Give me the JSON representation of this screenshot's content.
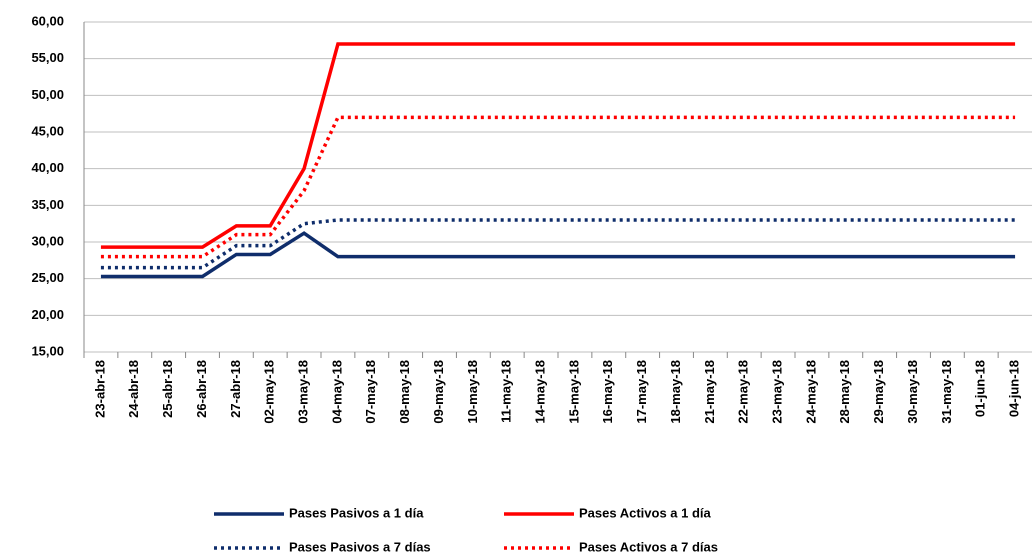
{
  "chart_data": {
    "type": "line",
    "categories": [
      "23-abr-18",
      "24-abr-18",
      "25-abr-18",
      "26-abr-18",
      "27-abr-18",
      "02-may-18",
      "03-may-18",
      "04-may-18",
      "07-may-18",
      "08-may-18",
      "09-may-18",
      "10-may-18",
      "11-may-18",
      "14-may-18",
      "15-may-18",
      "16-may-18",
      "17-may-18",
      "18-may-18",
      "21-may-18",
      "22-may-18",
      "23-may-18",
      "24-may-18",
      "28-may-18",
      "29-may-18",
      "30-may-18",
      "31-may-18",
      "01-jun-18",
      "04-jun-18"
    ],
    "series": [
      {
        "name": "Pases Pasivos a 1 día",
        "color": "#0f2d6b",
        "line_style": "solid",
        "values": [
          25.3,
          25.3,
          25.3,
          25.3,
          28.3,
          28.3,
          31.2,
          28,
          28,
          28,
          28,
          28,
          28,
          28,
          28,
          28,
          28,
          28,
          28,
          28,
          28,
          28,
          28,
          28,
          28,
          28,
          28,
          28
        ]
      },
      {
        "name": "Pases Activos a 1 día",
        "color": "#ff0000",
        "line_style": "solid",
        "values": [
          29.3,
          29.3,
          29.3,
          29.3,
          32.2,
          32.2,
          40,
          57,
          57,
          57,
          57,
          57,
          57,
          57,
          57,
          57,
          57,
          57,
          57,
          57,
          57,
          57,
          57,
          57,
          57,
          57,
          57,
          57
        ]
      },
      {
        "name": "Pases Pasivos a 7 días",
        "color": "#0f2d6b",
        "line_style": "dotted",
        "values": [
          26.5,
          26.5,
          26.5,
          26.5,
          29.5,
          29.5,
          32.5,
          33,
          33,
          33,
          33,
          33,
          33,
          33,
          33,
          33,
          33,
          33,
          33,
          33,
          33,
          33,
          33,
          33,
          33,
          33,
          33,
          33
        ]
      },
      {
        "name": "Pases Activos a 7 días",
        "color": "#ff0000",
        "line_style": "dotted",
        "values": [
          28,
          28,
          28,
          28,
          31,
          31,
          37,
          47,
          47,
          47,
          47,
          47,
          47,
          47,
          47,
          47,
          47,
          47,
          47,
          47,
          47,
          47,
          47,
          47,
          47,
          47,
          47,
          47
        ]
      }
    ],
    "ylim": [
      15,
      60
    ],
    "yticks": [
      {
        "value": 15,
        "label": "15,00"
      },
      {
        "value": 20,
        "label": "20,00"
      },
      {
        "value": 25,
        "label": "25,00"
      },
      {
        "value": 30,
        "label": "30,00"
      },
      {
        "value": 35,
        "label": "35,00"
      },
      {
        "value": 40,
        "label": "40,00"
      },
      {
        "value": 45,
        "label": "45,00"
      },
      {
        "value": 50,
        "label": "50,00"
      },
      {
        "value": 55,
        "label": "55,00"
      },
      {
        "value": 60,
        "label": "60,00"
      }
    ],
    "grid": true
  }
}
